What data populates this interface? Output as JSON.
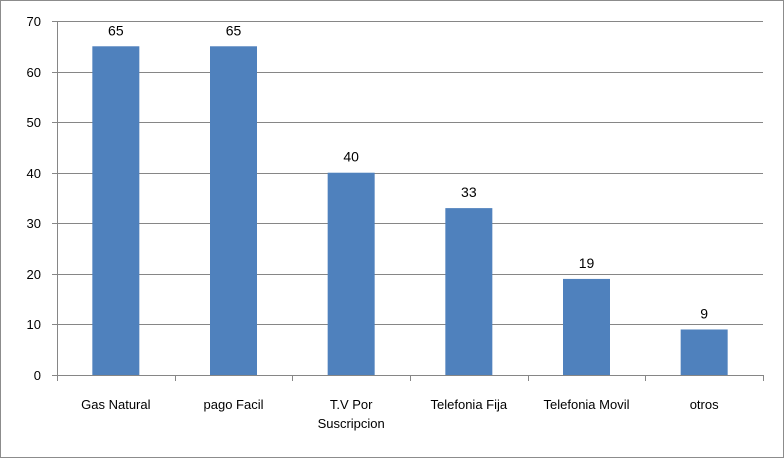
{
  "chart_data": {
    "type": "bar",
    "title": "",
    "xlabel": "",
    "ylabel": "",
    "categories": [
      [
        "Gas Natural"
      ],
      [
        "pago Facil"
      ],
      [
        "T.V Por",
        "Suscripcion"
      ],
      [
        "Telefonia Fija"
      ],
      [
        "Telefonia Movil"
      ],
      [
        "otros"
      ]
    ],
    "values": [
      65,
      65,
      40,
      33,
      19,
      9
    ],
    "ylim": [
      0,
      70
    ],
    "yticks": [
      0,
      10,
      20,
      30,
      40,
      50,
      60,
      70
    ],
    "grid": true,
    "legend": "none",
    "colors": {
      "bar": "#4F81BD",
      "grid": "#868686",
      "axis": "#868686"
    }
  }
}
